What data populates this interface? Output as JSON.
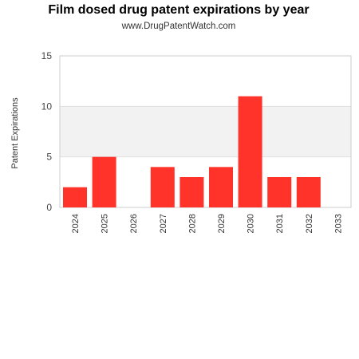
{
  "chart_data": {
    "type": "bar",
    "title": "Film dosed drug patent expirations by year",
    "subtitle": "www.DrugPatentWatch.com",
    "xlabel": "",
    "ylabel": "Patent Expirations",
    "categories": [
      "2024",
      "2025",
      "2026",
      "2027",
      "2028",
      "2029",
      "2030",
      "2031",
      "2032",
      "2033"
    ],
    "values": [
      2,
      5,
      0,
      4,
      3,
      4,
      11,
      3,
      3,
      0
    ],
    "ylim": [
      0,
      15
    ],
    "yticks": [
      0,
      5,
      10,
      15
    ],
    "grid": true,
    "bar_color": "#ff3329",
    "band_color": "#f2f2f2"
  }
}
